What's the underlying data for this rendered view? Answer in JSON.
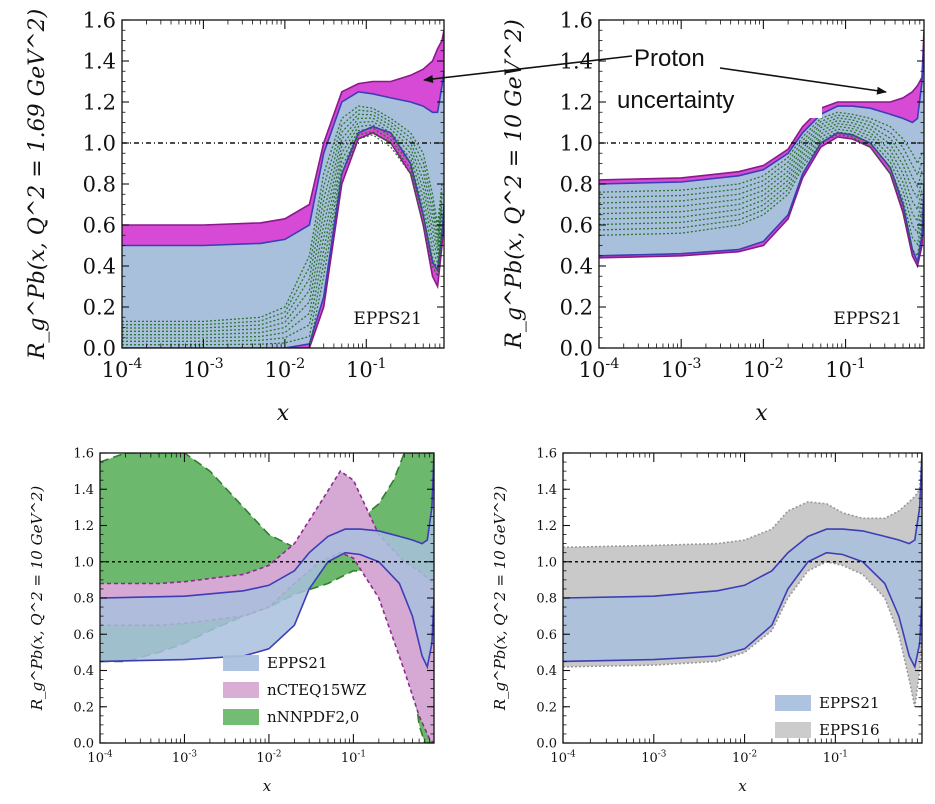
{
  "annotation": {
    "line1": "Proton",
    "line2": "uncertainty"
  },
  "colors": {
    "epps21_fill": "#a9c0dd",
    "epps21_edge": "#3d3db5",
    "proton_fill": "#d64ad6",
    "proton_edge": "#8a1a8a",
    "ncteq_fill": "#d6a9d4",
    "ncteq_edge": "#8e2a8e",
    "nnnpdf_fill": "#6cb86c",
    "nnnpdf_edge": "#2f7f2f",
    "epps16_fill": "#c9c9c9",
    "epps16_edge": "#9a9a9a",
    "replica": "#1f6e1f"
  },
  "chart_data": [
    {
      "type": "area",
      "xscale": "log",
      "xlim": [
        0.0001,
        0.9
      ],
      "ylim": [
        0,
        1.6
      ],
      "xlabel": "x",
      "ylabel": "R_g^Pb(x, Q^2 = 1.69 GeV^2)",
      "yticks": [
        "0.0",
        "0.2",
        "0.4",
        "0.6",
        "0.8",
        "1.0",
        "1.2",
        "1.4",
        "1.6"
      ],
      "xticks": [
        "10^-4",
        "10^-3",
        "10^-2",
        "10^-1"
      ],
      "label": "EPPS21",
      "reference_line": 1.0,
      "series": [
        {
          "name": "EPPS21",
          "x": [
            0.0001,
            0.001,
            0.005,
            0.01,
            0.02,
            0.03,
            0.05,
            0.08,
            0.12,
            0.2,
            0.35,
            0.5,
            0.65,
            0.75,
            0.85,
            0.9
          ],
          "upper": [
            0.5,
            0.5,
            0.51,
            0.53,
            0.6,
            0.95,
            1.2,
            1.25,
            1.24,
            1.22,
            1.2,
            1.18,
            1.15,
            1.15,
            1.28,
            1.35
          ],
          "lower": [
            0.0,
            0.0,
            0.0,
            0.0,
            0.02,
            0.25,
            0.85,
            1.05,
            1.08,
            1.05,
            0.9,
            0.65,
            0.42,
            0.38,
            0.55,
            0.7
          ]
        },
        {
          "name": "Proton uncertainty",
          "x": [
            0.0001,
            0.001,
            0.005,
            0.01,
            0.02,
            0.03,
            0.05,
            0.08,
            0.12,
            0.2,
            0.35,
            0.5,
            0.65,
            0.75,
            0.85,
            0.9
          ],
          "upper": [
            0.6,
            0.6,
            0.61,
            0.63,
            0.7,
            1.0,
            1.25,
            1.29,
            1.3,
            1.3,
            1.33,
            1.36,
            1.4,
            1.46,
            1.5,
            1.55
          ],
          "lower": [
            0.0,
            0.0,
            0.0,
            0.0,
            0.0,
            0.2,
            0.8,
            1.02,
            1.05,
            1.0,
            0.85,
            0.6,
            0.35,
            0.3,
            0.5,
            0.65
          ]
        },
        {
          "name": "replicas",
          "x": [
            0.0001,
            0.001,
            0.005,
            0.01,
            0.02,
            0.03,
            0.05,
            0.08,
            0.12,
            0.2,
            0.35,
            0.5,
            0.65,
            0.75,
            0.85
          ],
          "upper": [
            0.13,
            0.13,
            0.15,
            0.2,
            0.45,
            0.85,
            1.12,
            1.18,
            1.17,
            1.12,
            1.05,
            0.95,
            0.75,
            0.6,
            0.8
          ],
          "lower": [
            0.0,
            0.0,
            0.0,
            0.0,
            0.0,
            0.35,
            0.85,
            1.02,
            1.04,
            0.98,
            0.85,
            0.6,
            0.4,
            0.35,
            0.55
          ]
        }
      ]
    },
    {
      "type": "area",
      "xscale": "log",
      "xlim": [
        0.0001,
        0.9
      ],
      "ylim": [
        0,
        1.6
      ],
      "xlabel": "x",
      "ylabel": "R_g^Pb(x, Q^2 = 10 GeV^2)",
      "yticks": [
        "0.0",
        "0.2",
        "0.4",
        "0.6",
        "0.8",
        "1.0",
        "1.2",
        "1.4",
        "1.6"
      ],
      "xticks": [
        "10^-4",
        "10^-3",
        "10^-2",
        "10^-1"
      ],
      "label": "EPPS21",
      "reference_line": 1.0,
      "series": [
        {
          "name": "EPPS21",
          "x": [
            0.0001,
            0.001,
            0.005,
            0.01,
            0.02,
            0.03,
            0.05,
            0.08,
            0.12,
            0.2,
            0.35,
            0.5,
            0.65,
            0.75,
            0.85,
            0.9
          ],
          "upper": [
            0.8,
            0.81,
            0.84,
            0.87,
            0.95,
            1.05,
            1.14,
            1.18,
            1.18,
            1.17,
            1.14,
            1.12,
            1.1,
            1.12,
            1.3,
            1.5
          ],
          "lower": [
            0.45,
            0.46,
            0.48,
            0.52,
            0.65,
            0.85,
            1.0,
            1.05,
            1.04,
            1.0,
            0.88,
            0.7,
            0.48,
            0.42,
            0.55,
            0.8
          ]
        },
        {
          "name": "Proton uncertainty",
          "x": [
            0.0001,
            0.001,
            0.005,
            0.01,
            0.02,
            0.03,
            0.05,
            0.08,
            0.12,
            0.2,
            0.35,
            0.5,
            0.65,
            0.75,
            0.85,
            0.9
          ],
          "upper": [
            0.82,
            0.83,
            0.86,
            0.89,
            0.97,
            1.08,
            1.17,
            1.2,
            1.2,
            1.2,
            1.2,
            1.22,
            1.25,
            1.28,
            1.32,
            1.55
          ],
          "lower": [
            0.44,
            0.45,
            0.47,
            0.5,
            0.63,
            0.83,
            0.98,
            1.03,
            1.02,
            0.98,
            0.85,
            0.66,
            0.45,
            0.4,
            0.5,
            0.75
          ]
        },
        {
          "name": "replicas",
          "x": [
            0.0001,
            0.001,
            0.005,
            0.01,
            0.02,
            0.03,
            0.05,
            0.08,
            0.12,
            0.2,
            0.35,
            0.5,
            0.65,
            0.75,
            0.85
          ],
          "upper": [
            0.76,
            0.77,
            0.8,
            0.84,
            0.93,
            1.03,
            1.12,
            1.15,
            1.14,
            1.12,
            1.08,
            1.02,
            0.95,
            0.9,
            0.95
          ],
          "lower": [
            0.55,
            0.56,
            0.6,
            0.65,
            0.75,
            0.88,
            1.0,
            1.04,
            1.03,
            0.98,
            0.85,
            0.68,
            0.48,
            0.45,
            0.6
          ]
        }
      ]
    },
    {
      "type": "area",
      "xscale": "log",
      "xlim": [
        0.0001,
        0.9
      ],
      "ylim": [
        0,
        1.6
      ],
      "xlabel": "x",
      "ylabel": "R_g^Pb(x, Q^2 = 10 GeV^2)",
      "yticks": [
        "0.0",
        "0.2",
        "0.4",
        "0.6",
        "0.8",
        "1.0",
        "1.2",
        "1.4",
        "1.6"
      ],
      "xticks": [
        "10^-4",
        "10^-3",
        "10^-2",
        "10^-1"
      ],
      "legend": [
        "EPPS21",
        "nCTEQ15WZ",
        "nNNPDF2,0"
      ],
      "legend_position": "bottom-center",
      "reference_line": 1.0,
      "series": [
        {
          "name": "nNNPDF2,0",
          "x": [
            0.0001,
            0.0002,
            0.0005,
            0.001,
            0.002,
            0.005,
            0.01,
            0.02,
            0.05,
            0.1,
            0.2,
            0.3,
            0.4,
            0.5,
            0.6,
            0.7,
            0.9
          ],
          "upper": [
            1.55,
            1.6,
            1.6,
            1.6,
            1.5,
            1.3,
            1.15,
            1.08,
            1.1,
            1.2,
            1.32,
            1.45,
            1.6,
            1.6,
            1.6,
            1.6,
            1.6
          ],
          "lower": [
            0.45,
            0.45,
            0.5,
            0.55,
            0.62,
            0.7,
            0.75,
            0.82,
            0.88,
            0.95,
            0.95,
            0.85,
            0.65,
            0.4,
            0.1,
            0.0,
            0.0
          ]
        },
        {
          "name": "nCTEQ15WZ",
          "x": [
            0.0001,
            0.0005,
            0.001,
            0.005,
            0.01,
            0.02,
            0.04,
            0.07,
            0.1,
            0.2,
            0.4,
            0.6,
            0.8,
            0.9
          ],
          "upper": [
            0.88,
            0.88,
            0.89,
            0.93,
            0.98,
            1.1,
            1.32,
            1.5,
            1.45,
            1.15,
            1.0,
            0.95,
            0.9,
            0.88
          ],
          "lower": [
            0.65,
            0.65,
            0.66,
            0.7,
            0.75,
            0.88,
            1.0,
            1.05,
            1.02,
            0.8,
            0.4,
            0.15,
            0.02,
            0.0
          ]
        },
        {
          "name": "EPPS21",
          "x": [
            0.0001,
            0.001,
            0.005,
            0.01,
            0.02,
            0.03,
            0.05,
            0.08,
            0.12,
            0.2,
            0.35,
            0.5,
            0.65,
            0.75,
            0.85,
            0.9
          ],
          "upper": [
            0.8,
            0.81,
            0.84,
            0.87,
            0.95,
            1.05,
            1.14,
            1.18,
            1.18,
            1.17,
            1.14,
            1.12,
            1.1,
            1.12,
            1.3,
            1.6
          ],
          "lower": [
            0.45,
            0.46,
            0.48,
            0.52,
            0.65,
            0.85,
            1.0,
            1.05,
            1.04,
            1.0,
            0.88,
            0.7,
            0.48,
            0.42,
            0.55,
            0.8
          ]
        }
      ]
    },
    {
      "type": "area",
      "xscale": "log",
      "xlim": [
        0.0001,
        0.9
      ],
      "ylim": [
        0,
        1.6
      ],
      "xlabel": "x",
      "ylabel": "R_g^Pb(x, Q^2 = 10 GeV^2)",
      "yticks": [
        "0.0",
        "0.2",
        "0.4",
        "0.6",
        "0.8",
        "1.0",
        "1.2",
        "1.4",
        "1.6"
      ],
      "xticks": [
        "10^-4",
        "10^-3",
        "10^-2",
        "10^-1"
      ],
      "legend": [
        "EPPS21",
        "EPPS16"
      ],
      "legend_position": "bottom-right",
      "reference_line": 1.0,
      "series": [
        {
          "name": "EPPS16",
          "x": [
            0.0001,
            0.001,
            0.005,
            0.01,
            0.02,
            0.03,
            0.05,
            0.08,
            0.12,
            0.2,
            0.35,
            0.5,
            0.65,
            0.75,
            0.85,
            0.9
          ],
          "upper": [
            1.08,
            1.09,
            1.1,
            1.12,
            1.18,
            1.28,
            1.33,
            1.32,
            1.27,
            1.24,
            1.24,
            1.28,
            1.33,
            1.36,
            1.4,
            1.6
          ],
          "lower": [
            0.42,
            0.43,
            0.45,
            0.5,
            0.62,
            0.8,
            0.95,
            1.0,
            0.98,
            0.93,
            0.8,
            0.6,
            0.35,
            0.2,
            0.4,
            0.6
          ]
        },
        {
          "name": "EPPS21",
          "x": [
            0.0001,
            0.001,
            0.005,
            0.01,
            0.02,
            0.03,
            0.05,
            0.08,
            0.12,
            0.2,
            0.35,
            0.5,
            0.65,
            0.75,
            0.85,
            0.9
          ],
          "upper": [
            0.8,
            0.81,
            0.84,
            0.87,
            0.95,
            1.05,
            1.14,
            1.18,
            1.18,
            1.17,
            1.14,
            1.12,
            1.1,
            1.12,
            1.3,
            1.6
          ],
          "lower": [
            0.45,
            0.46,
            0.48,
            0.52,
            0.65,
            0.85,
            1.0,
            1.05,
            1.04,
            1.0,
            0.88,
            0.7,
            0.48,
            0.42,
            0.55,
            0.8
          ]
        }
      ]
    }
  ]
}
